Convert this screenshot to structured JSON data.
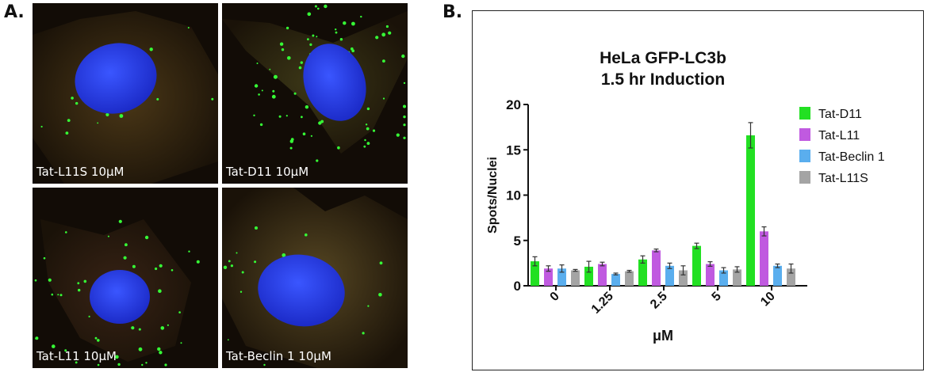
{
  "panel_a": {
    "letter": "A.",
    "images": [
      {
        "id": "tat-l11s",
        "label": "Tat-L11S 10μM",
        "puncta": 12
      },
      {
        "id": "tat-d11",
        "label": "Tat-D11 10μM",
        "puncta": 70
      },
      {
        "id": "tat-l11",
        "label": "Tat-L11 10μM",
        "puncta": 45
      },
      {
        "id": "tat-beclin",
        "label": "Tat-Beclin 1 10μM",
        "puncta": 20
      }
    ]
  },
  "panel_b": {
    "letter": "B."
  },
  "chart_data": {
    "type": "bar",
    "title_lines": [
      "HeLa GFP-LC3b",
      "1.5 hr Induction"
    ],
    "xlabel": "μM",
    "ylabel": "Spots/Nuclei",
    "categories": [
      "0",
      "1.25",
      "2.5",
      "5",
      "10"
    ],
    "ylim": [
      0,
      20
    ],
    "yticks": [
      0,
      5,
      10,
      15,
      20
    ],
    "legend_position": "top-right",
    "series": [
      {
        "name": "Tat-D11",
        "color": "#22e022",
        "values": [
          2.7,
          2.1,
          2.9,
          4.4,
          16.6
        ],
        "errors": [
          0.5,
          0.6,
          0.4,
          0.3,
          1.4
        ]
      },
      {
        "name": "Tat-L11",
        "color": "#c05ae0",
        "values": [
          1.9,
          2.4,
          3.9,
          2.4,
          6.0
        ],
        "errors": [
          0.3,
          0.2,
          0.15,
          0.25,
          0.5
        ]
      },
      {
        "name": "Tat-Beclin 1",
        "color": "#5aaeee",
        "values": [
          1.9,
          1.3,
          2.2,
          1.7,
          2.2
        ],
        "errors": [
          0.4,
          0.1,
          0.3,
          0.3,
          0.2
        ]
      },
      {
        "name": "Tat-L11S",
        "color": "#a4a4a4",
        "values": [
          1.7,
          1.6,
          1.7,
          1.8,
          1.9
        ],
        "errors": [
          0.1,
          0.1,
          0.5,
          0.3,
          0.5
        ]
      }
    ]
  }
}
